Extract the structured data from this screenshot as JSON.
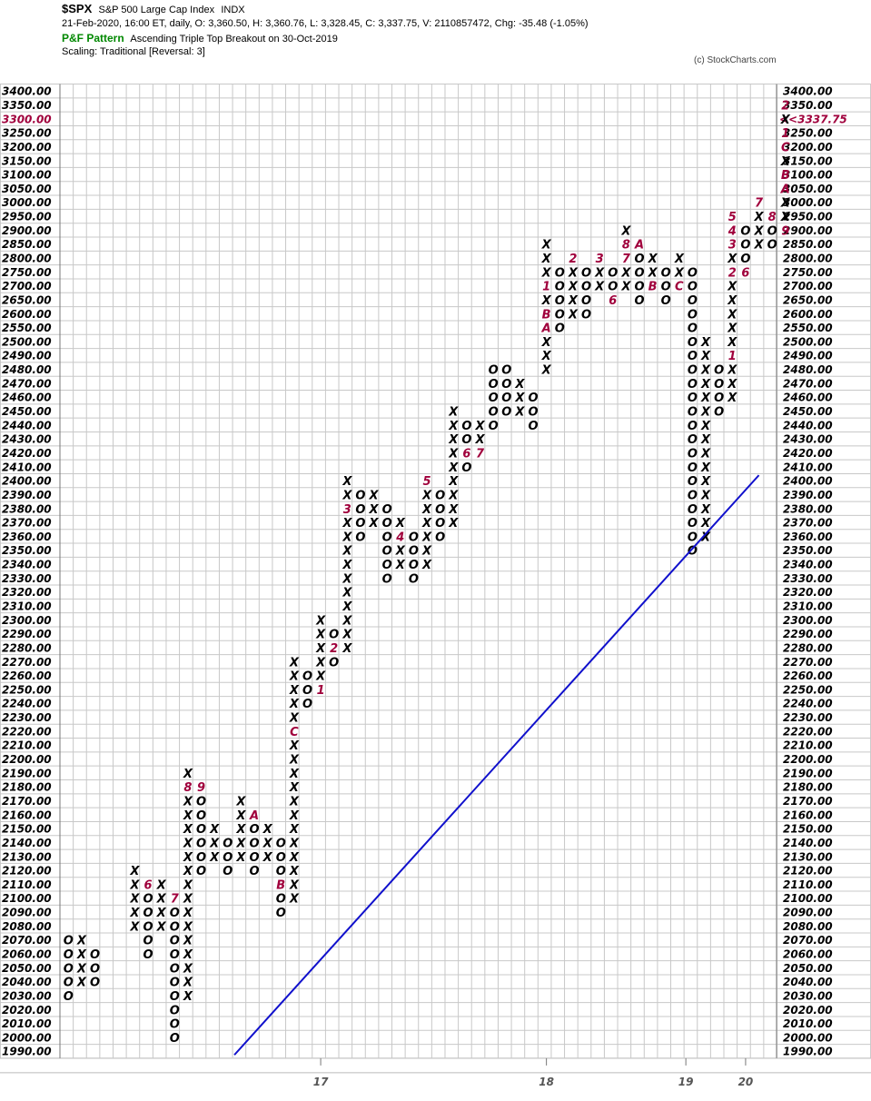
{
  "header": {
    "symbol": "$SPX",
    "name": "S&P 500 Large Cap Index",
    "exchange": "INDX",
    "ohlc": "21-Feb-2020, 16:00 ET, daily, O: 3,360.50, H: 3,360.76, L: 3,328.45, C: 3,337.75, V: 2110857472, Chg: -35.48 (-1.05%)",
    "pattern_label": "P&F Pattern",
    "pattern_value": "Ascending Triple Top Breakout on 30-Oct-2019",
    "scaling": "Scaling: Traditional [Reversal: 3]",
    "copyright": "(c) StockCharts.com"
  },
  "chart_data": {
    "type": "table",
    "subtype": "point-and-figure",
    "y_levels": [
      3400,
      3350,
      3300,
      3250,
      3200,
      3150,
      3100,
      3050,
      3000,
      2950,
      2900,
      2850,
      2800,
      2750,
      2700,
      2650,
      2600,
      2550,
      2500,
      2490,
      2480,
      2470,
      2460,
      2450,
      2440,
      2430,
      2420,
      2410,
      2400,
      2390,
      2380,
      2370,
      2360,
      2350,
      2340,
      2330,
      2320,
      2310,
      2300,
      2290,
      2280,
      2270,
      2260,
      2250,
      2240,
      2230,
      2220,
      2210,
      2200,
      2190,
      2180,
      2170,
      2160,
      2150,
      2140,
      2130,
      2120,
      2110,
      2100,
      2090,
      2080,
      2070,
      2060,
      2050,
      2040,
      2030,
      2020,
      2010,
      2000,
      1990
    ],
    "y_labels": [
      "3400.00",
      "3350.00",
      "3300.00",
      "3250.00",
      "3200.00",
      "3150.00",
      "3100.00",
      "3050.00",
      "3000.00",
      "2950.00",
      "2900.00",
      "2850.00",
      "2800.00",
      "2750.00",
      "2700.00",
      "2650.00",
      "2600.00",
      "2550.00",
      "2500.00",
      "2490.00",
      "2480.00",
      "2470.00",
      "2460.00",
      "2450.00",
      "2440.00",
      "2430.00",
      "2420.00",
      "2410.00",
      "2400.00",
      "2390.00",
      "2380.00",
      "2370.00",
      "2360.00",
      "2350.00",
      "2340.00",
      "2330.00",
      "2320.00",
      "2310.00",
      "2300.00",
      "2290.00",
      "2280.00",
      "2270.00",
      "2260.00",
      "2250.00",
      "2240.00",
      "2230.00",
      "2220.00",
      "2210.00",
      "2200.00",
      "2190.00",
      "2180.00",
      "2170.00",
      "2160.00",
      "2150.00",
      "2140.00",
      "2130.00",
      "2120.00",
      "2110.00",
      "2100.00",
      "2090.00",
      "2080.00",
      "2070.00",
      "2060.00",
      "2050.00",
      "2040.00",
      "2030.00",
      "2020.00",
      "2010.00",
      "2000.00",
      "1990.00"
    ],
    "right_y_labels": [
      "3400.00",
      "3350.00",
      "",
      "3250.00",
      "3200.00",
      "3150.00",
      "3100.00",
      "3050.00",
      "3000.00",
      "2950.00",
      "2900.00",
      "2850.00",
      "2800.00",
      "2750.00",
      "2700.00",
      "2650.00",
      "2600.00",
      "2550.00",
      "2500.00",
      "2490.00",
      "2480.00",
      "2470.00",
      "2460.00",
      "2450.00",
      "2440.00",
      "2430.00",
      "2420.00",
      "2410.00",
      "2400.00",
      "2390.00",
      "2380.00",
      "2370.00",
      "2360.00",
      "2350.00",
      "2340.00",
      "2330.00",
      "2320.00",
      "2310.00",
      "2300.00",
      "2290.00",
      "2280.00",
      "2270.00",
      "2260.00",
      "2250.00",
      "2240.00",
      "2230.00",
      "2220.00",
      "2210.00",
      "2200.00",
      "2190.00",
      "2180.00",
      "2170.00",
      "2160.00",
      "2150.00",
      "2140.00",
      "2130.00",
      "2120.00",
      "2110.00",
      "2100.00",
      "2090.00",
      "2080.00",
      "2070.00",
      "2060.00",
      "2050.00",
      "2040.00",
      "2030.00",
      "2020.00",
      "2010.00",
      "2000.00",
      "1990.00"
    ],
    "highlight_level_label": "3300.00",
    "last_price_label": "<<3337.75",
    "x_ticks": [
      {
        "label": "17",
        "col": 19.5
      },
      {
        "label": "18",
        "col": 36.5
      },
      {
        "label": "19",
        "col": 47
      },
      {
        "label": "20",
        "col": 51.5
      }
    ],
    "trendline": {
      "from": {
        "col": 12.5,
        "level": 1990
      },
      "to": {
        "col": 52,
        "level": 2400
      }
    },
    "columns": [
      {
        "col": 0,
        "type": "O",
        "top": 2070,
        "bottom": 2030
      },
      {
        "col": 1,
        "type": "X",
        "top": 2070,
        "bottom": 2040
      },
      {
        "col": 2,
        "type": "O",
        "top": 2060,
        "bottom": 2040
      },
      {
        "col": 5,
        "type": "X",
        "top": 2120,
        "bottom": 2080
      },
      {
        "col": 6,
        "type": "O",
        "top": 2110,
        "bottom": 2060,
        "marks": {
          "2110": "6"
        }
      },
      {
        "col": 7,
        "type": "X",
        "top": 2110,
        "bottom": 2080
      },
      {
        "col": 8,
        "type": "O",
        "top": 2100,
        "bottom": 2000,
        "marks": {
          "2100": "7"
        }
      },
      {
        "col": 9,
        "type": "X",
        "top": 2190,
        "bottom": 2030,
        "marks": {
          "2180": "8"
        }
      },
      {
        "col": 10,
        "type": "O",
        "top": 2180,
        "bottom": 2120,
        "marks": {
          "2180": "9"
        }
      },
      {
        "col": 11,
        "type": "X",
        "top": 2150,
        "bottom": 2130
      },
      {
        "col": 12,
        "type": "O",
        "top": 2140,
        "bottom": 2120
      },
      {
        "col": 13,
        "type": "X",
        "top": 2170,
        "bottom": 2130
      },
      {
        "col": 14,
        "type": "O",
        "top": 2160,
        "bottom": 2120,
        "marks": {
          "2160": "A"
        }
      },
      {
        "col": 15,
        "type": "X",
        "top": 2150,
        "bottom": 2130
      },
      {
        "col": 16,
        "type": "O",
        "top": 2140,
        "bottom": 2090,
        "marks": {
          "2110": "B"
        }
      },
      {
        "col": 17,
        "type": "X",
        "top": 2270,
        "bottom": 2100,
        "marks": {
          "2220": "C"
        }
      },
      {
        "col": 18,
        "type": "O",
        "top": 2260,
        "bottom": 2240
      },
      {
        "col": 19,
        "type": "X",
        "top": 2300,
        "bottom": 2250,
        "marks": {
          "2250": "1"
        }
      },
      {
        "col": 20,
        "type": "O",
        "top": 2290,
        "bottom": 2270,
        "marks": {
          "2280": "2"
        }
      },
      {
        "col": 21,
        "type": "X",
        "top": 2400,
        "bottom": 2280,
        "marks": {
          "2380": "3"
        }
      },
      {
        "col": 22,
        "type": "O",
        "top": 2390,
        "bottom": 2360
      },
      {
        "col": 23,
        "type": "X",
        "top": 2390,
        "bottom": 2370
      },
      {
        "col": 24,
        "type": "O",
        "top": 2380,
        "bottom": 2330
      },
      {
        "col": 25,
        "type": "X",
        "top": 2370,
        "bottom": 2340,
        "marks": {
          "2360": "4"
        }
      },
      {
        "col": 26,
        "type": "O",
        "top": 2360,
        "bottom": 2330
      },
      {
        "col": 27,
        "type": "X",
        "top": 2400,
        "bottom": 2340,
        "marks": {
          "2400": "5"
        }
      },
      {
        "col": 28,
        "type": "O",
        "top": 2390,
        "bottom": 2360
      },
      {
        "col": 29,
        "type": "X",
        "top": 2450,
        "bottom": 2370
      },
      {
        "col": 30,
        "type": "O",
        "top": 2440,
        "bottom": 2410,
        "marks": {
          "2420": "6"
        }
      },
      {
        "col": 31,
        "type": "X",
        "top": 2440,
        "bottom": 2420,
        "marks": {
          "2420": "7"
        }
      },
      {
        "col": 32,
        "type": "O",
        "top": 2480,
        "bottom": 2440,
        "marks": {
          "2490": "8"
        },
        "note": "col shows X at 2490..2460 then O"
      },
      {
        "col": 33,
        "type": "O",
        "top": 2480,
        "bottom": 2450
      },
      {
        "col": 34,
        "type": "X",
        "top": 2470,
        "bottom": 2450
      },
      {
        "col": 35,
        "type": "O",
        "top": 2460,
        "bottom": 2440
      },
      {
        "col": 36,
        "type": "X",
        "top": 2470,
        "bottom": 2420
      }
    ]
  }
}
